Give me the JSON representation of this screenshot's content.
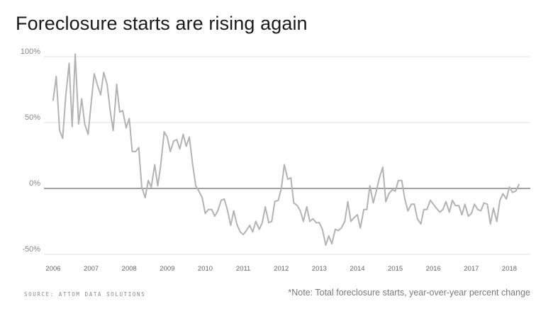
{
  "title": "Foreclosure starts are rising again",
  "source": "SOURCE: ATTOM DATA SOLUTIONS",
  "note": "*Note: Total foreclosure starts, year-over-year percent change",
  "colors": {
    "line": "#b3b3b3",
    "grid": "#e2e2e2",
    "zero": "#444444",
    "axis_text": "#888888"
  },
  "chart_data": {
    "type": "line",
    "title": "Foreclosure starts are rising again",
    "xlabel": "",
    "ylabel": "",
    "ylim": [
      -50,
      100
    ],
    "yticks": [
      100,
      50,
      0,
      -50
    ],
    "ytick_labels": [
      "100%",
      "50%",
      "0%",
      "-50%"
    ],
    "xlim": [
      2006,
      2018.55
    ],
    "xticks": [
      2006,
      2007,
      2008,
      2009,
      2010,
      2011,
      2012,
      2013,
      2014,
      2015,
      2016,
      2017,
      2018
    ],
    "xtick_labels": [
      "2006",
      "2007",
      "2008",
      "2009",
      "2010",
      "2011",
      "2012",
      "2013",
      "2014",
      "2015",
      "2016",
      "2017",
      "2018"
    ],
    "grid": true,
    "zero_line": true,
    "series": [
      {
        "values": [
          {
            "x": 2006.0,
            "y": 67
          },
          {
            "x": 2006.08,
            "y": 85
          },
          {
            "x": 2006.17,
            "y": 44
          },
          {
            "x": 2006.25,
            "y": 38
          },
          {
            "x": 2006.33,
            "y": 70
          },
          {
            "x": 2006.42,
            "y": 95
          },
          {
            "x": 2006.5,
            "y": 47
          },
          {
            "x": 2006.58,
            "y": 102
          },
          {
            "x": 2006.67,
            "y": 49
          },
          {
            "x": 2006.75,
            "y": 68
          },
          {
            "x": 2006.83,
            "y": 49
          },
          {
            "x": 2006.92,
            "y": 41
          },
          {
            "x": 2007.0,
            "y": 65
          },
          {
            "x": 2007.08,
            "y": 87
          },
          {
            "x": 2007.17,
            "y": 78
          },
          {
            "x": 2007.25,
            "y": 71
          },
          {
            "x": 2007.33,
            "y": 88
          },
          {
            "x": 2007.42,
            "y": 79
          },
          {
            "x": 2007.5,
            "y": 59
          },
          {
            "x": 2007.58,
            "y": 44
          },
          {
            "x": 2007.67,
            "y": 79
          },
          {
            "x": 2007.75,
            "y": 58
          },
          {
            "x": 2007.83,
            "y": 59
          },
          {
            "x": 2007.92,
            "y": 46
          },
          {
            "x": 2008.0,
            "y": 53
          },
          {
            "x": 2008.08,
            "y": 28
          },
          {
            "x": 2008.17,
            "y": 28
          },
          {
            "x": 2008.25,
            "y": 31
          },
          {
            "x": 2008.33,
            "y": 1
          },
          {
            "x": 2008.42,
            "y": -7
          },
          {
            "x": 2008.5,
            "y": 6
          },
          {
            "x": 2008.58,
            "y": 1
          },
          {
            "x": 2008.67,
            "y": 18
          },
          {
            "x": 2008.75,
            "y": 2
          },
          {
            "x": 2008.83,
            "y": 18
          },
          {
            "x": 2008.92,
            "y": 43
          },
          {
            "x": 2009.0,
            "y": 39
          },
          {
            "x": 2009.08,
            "y": 28
          },
          {
            "x": 2009.17,
            "y": 36
          },
          {
            "x": 2009.25,
            "y": 37
          },
          {
            "x": 2009.33,
            "y": 30
          },
          {
            "x": 2009.42,
            "y": 41
          },
          {
            "x": 2009.5,
            "y": 32
          },
          {
            "x": 2009.58,
            "y": 39
          },
          {
            "x": 2009.67,
            "y": 18
          },
          {
            "x": 2009.75,
            "y": 2
          },
          {
            "x": 2009.83,
            "y": -2
          },
          {
            "x": 2009.92,
            "y": -7
          },
          {
            "x": 2010.0,
            "y": -19
          },
          {
            "x": 2010.08,
            "y": -16
          },
          {
            "x": 2010.17,
            "y": -16
          },
          {
            "x": 2010.25,
            "y": -21
          },
          {
            "x": 2010.33,
            "y": -17
          },
          {
            "x": 2010.42,
            "y": -9
          },
          {
            "x": 2010.5,
            "y": -8
          },
          {
            "x": 2010.58,
            "y": -16
          },
          {
            "x": 2010.67,
            "y": -28
          },
          {
            "x": 2010.75,
            "y": -17
          },
          {
            "x": 2010.83,
            "y": -27
          },
          {
            "x": 2010.92,
            "y": -33
          },
          {
            "x": 2011.0,
            "y": -35
          },
          {
            "x": 2011.08,
            "y": -32
          },
          {
            "x": 2011.17,
            "y": -28
          },
          {
            "x": 2011.25,
            "y": -33
          },
          {
            "x": 2011.33,
            "y": -25
          },
          {
            "x": 2011.42,
            "y": -31
          },
          {
            "x": 2011.5,
            "y": -26
          },
          {
            "x": 2011.58,
            "y": -14
          },
          {
            "x": 2011.67,
            "y": -26
          },
          {
            "x": 2011.75,
            "y": -25
          },
          {
            "x": 2011.83,
            "y": -10
          },
          {
            "x": 2011.92,
            "y": -9
          },
          {
            "x": 2012.0,
            "y": 0
          },
          {
            "x": 2012.08,
            "y": 18
          },
          {
            "x": 2012.17,
            "y": 7
          },
          {
            "x": 2012.25,
            "y": 8
          },
          {
            "x": 2012.33,
            "y": -11
          },
          {
            "x": 2012.42,
            "y": -13
          },
          {
            "x": 2012.5,
            "y": -17
          },
          {
            "x": 2012.58,
            "y": -25
          },
          {
            "x": 2012.67,
            "y": -14
          },
          {
            "x": 2012.75,
            "y": -25
          },
          {
            "x": 2012.83,
            "y": -23
          },
          {
            "x": 2012.92,
            "y": -26
          },
          {
            "x": 2013.0,
            "y": -26
          },
          {
            "x": 2013.08,
            "y": -31
          },
          {
            "x": 2013.17,
            "y": -43
          },
          {
            "x": 2013.25,
            "y": -36
          },
          {
            "x": 2013.33,
            "y": -42
          },
          {
            "x": 2013.42,
            "y": -31
          },
          {
            "x": 2013.5,
            "y": -32
          },
          {
            "x": 2013.58,
            "y": -30
          },
          {
            "x": 2013.67,
            "y": -25
          },
          {
            "x": 2013.75,
            "y": -10
          },
          {
            "x": 2013.83,
            "y": -25
          },
          {
            "x": 2013.92,
            "y": -22
          },
          {
            "x": 2014.0,
            "y": -20
          },
          {
            "x": 2014.08,
            "y": -30
          },
          {
            "x": 2014.17,
            "y": -16
          },
          {
            "x": 2014.25,
            "y": -16
          },
          {
            "x": 2014.33,
            "y": 2
          },
          {
            "x": 2014.42,
            "y": -11
          },
          {
            "x": 2014.5,
            "y": -2
          },
          {
            "x": 2014.58,
            "y": 8
          },
          {
            "x": 2014.67,
            "y": 16
          },
          {
            "x": 2014.75,
            "y": -10
          },
          {
            "x": 2014.83,
            "y": -4
          },
          {
            "x": 2014.92,
            "y": -1
          },
          {
            "x": 2015.0,
            "y": -2
          },
          {
            "x": 2015.08,
            "y": 6
          },
          {
            "x": 2015.17,
            "y": 6
          },
          {
            "x": 2015.25,
            "y": -8
          },
          {
            "x": 2015.33,
            "y": -17
          },
          {
            "x": 2015.42,
            "y": -12
          },
          {
            "x": 2015.5,
            "y": -12
          },
          {
            "x": 2015.58,
            "y": -23
          },
          {
            "x": 2015.67,
            "y": -27
          },
          {
            "x": 2015.75,
            "y": -16
          },
          {
            "x": 2015.83,
            "y": -16
          },
          {
            "x": 2015.92,
            "y": -9
          },
          {
            "x": 2016.0,
            "y": -12
          },
          {
            "x": 2016.08,
            "y": -15
          },
          {
            "x": 2016.17,
            "y": -18
          },
          {
            "x": 2016.25,
            "y": -16
          },
          {
            "x": 2016.33,
            "y": -10
          },
          {
            "x": 2016.42,
            "y": -18
          },
          {
            "x": 2016.5,
            "y": -9
          },
          {
            "x": 2016.58,
            "y": -13
          },
          {
            "x": 2016.67,
            "y": -13
          },
          {
            "x": 2016.75,
            "y": -20
          },
          {
            "x": 2016.83,
            "y": -12
          },
          {
            "x": 2016.92,
            "y": -21
          },
          {
            "x": 2017.0,
            "y": -19
          },
          {
            "x": 2017.08,
            "y": -12
          },
          {
            "x": 2017.17,
            "y": -16
          },
          {
            "x": 2017.25,
            "y": -17
          },
          {
            "x": 2017.33,
            "y": -11
          },
          {
            "x": 2017.42,
            "y": -12
          },
          {
            "x": 2017.5,
            "y": -27
          },
          {
            "x": 2017.58,
            "y": -15
          },
          {
            "x": 2017.67,
            "y": -25
          },
          {
            "x": 2017.75,
            "y": -9
          },
          {
            "x": 2017.83,
            "y": -4
          },
          {
            "x": 2017.92,
            "y": -8
          },
          {
            "x": 2018.0,
            "y": 1
          },
          {
            "x": 2018.08,
            "y": -3
          },
          {
            "x": 2018.17,
            "y": -2
          },
          {
            "x": 2018.25,
            "y": 3
          }
        ]
      }
    ]
  }
}
